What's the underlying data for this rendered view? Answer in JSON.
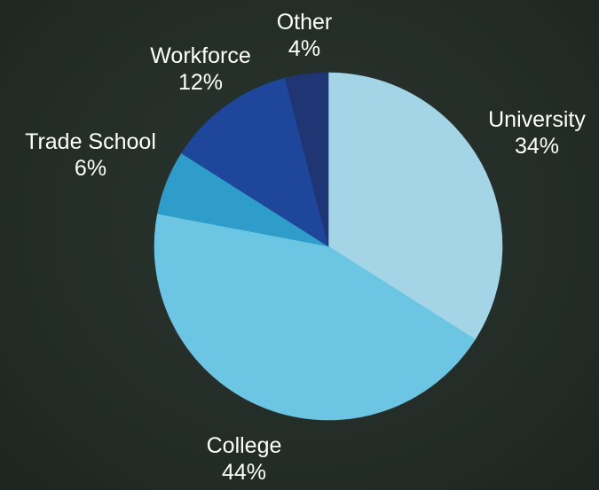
{
  "chart_data": {
    "type": "pie",
    "title": "",
    "start_angle_deg": 0,
    "direction": "clockwise",
    "slices": [
      {
        "label": "University",
        "value": 34,
        "value_label": "34%",
        "color": "#a3d5e6"
      },
      {
        "label": "College",
        "value": 44,
        "value_label": "44%",
        "color": "#6cc5e3"
      },
      {
        "label": "Trade School",
        "value": 6,
        "value_label": "6%",
        "color": "#2f9dc9"
      },
      {
        "label": "Workforce",
        "value": 12,
        "value_label": "12%",
        "color": "#1e479b"
      },
      {
        "label": "Other",
        "value": 4,
        "value_label": "4%",
        "color": "#203574"
      }
    ],
    "legend": "none",
    "data_labels": "outside"
  }
}
